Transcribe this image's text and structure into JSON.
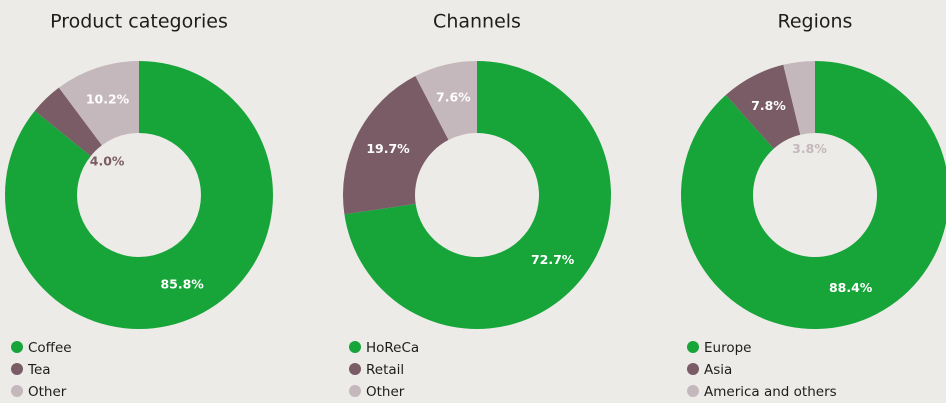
{
  "chart_data": [
    {
      "type": "pie",
      "title": "Product categories",
      "categories": [
        "Coffee",
        "Tea",
        "Other"
      ],
      "values": [
        85.8,
        4.0,
        10.2
      ],
      "value_labels": [
        "85.8%",
        "4.0%",
        "10.2%"
      ],
      "colors": [
        "#17a539",
        "#7a5c66",
        "#c5b8bd"
      ],
      "donut": true
    },
    {
      "type": "pie",
      "title": "Channels",
      "categories": [
        "HoReCa",
        "Retail",
        "Other"
      ],
      "values": [
        72.7,
        19.7,
        7.6
      ],
      "value_labels": [
        "72.7%",
        "19.7%",
        "7.6%"
      ],
      "colors": [
        "#17a539",
        "#7a5c66",
        "#c5b8bd"
      ],
      "donut": true
    },
    {
      "type": "pie",
      "title": "Regions",
      "categories": [
        "Europe",
        "Asia",
        "America and others"
      ],
      "values": [
        88.4,
        7.8,
        3.8
      ],
      "value_labels": [
        "88.4%",
        "7.8%",
        "3.8%"
      ],
      "colors": [
        "#17a539",
        "#7a5c66",
        "#c5b8bd"
      ],
      "donut": true
    }
  ]
}
